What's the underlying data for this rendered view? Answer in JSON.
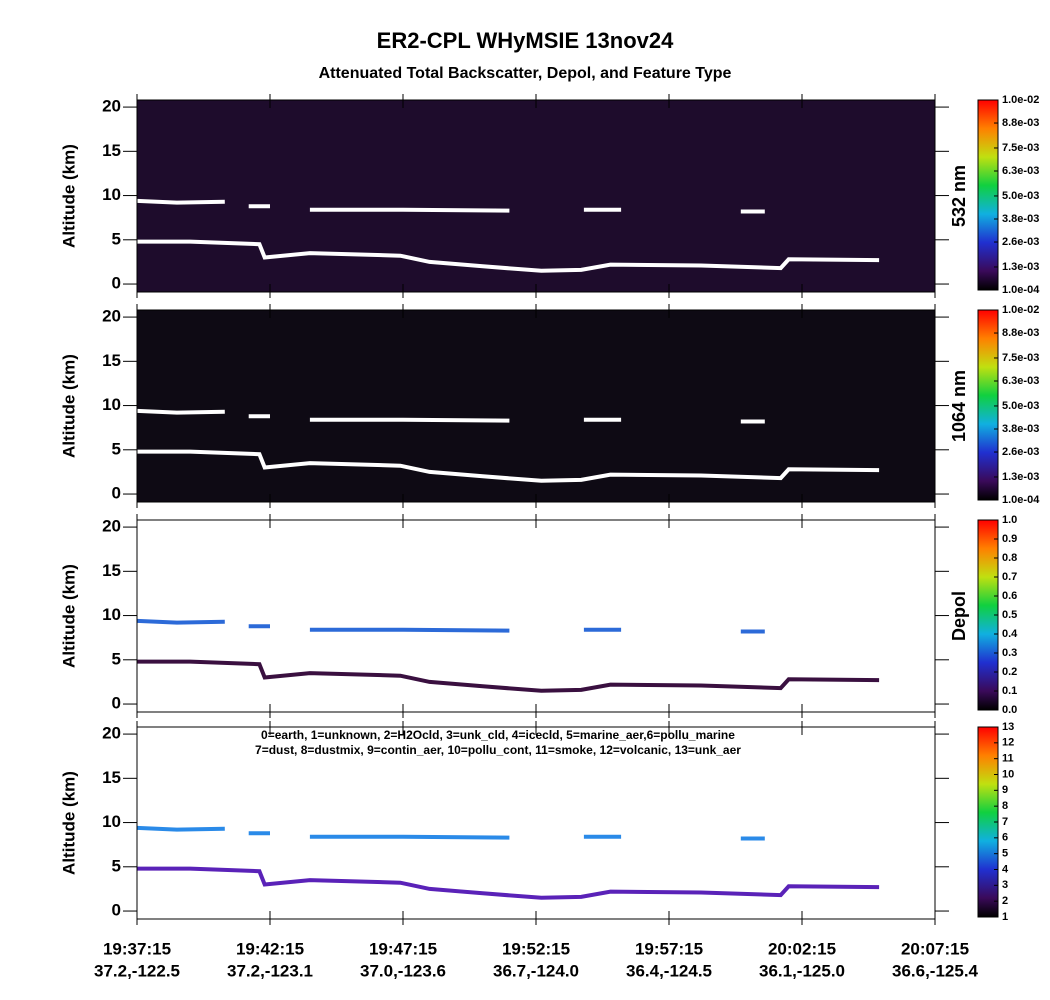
{
  "chart_data": {
    "type": "curtain",
    "title": "ER2-CPL WHyMSIE 13nov24",
    "subtitle": "Attenuated Total Backscatter, Depol, and Feature Type",
    "xlim": [
      0,
      30
    ],
    "xticks": [
      {
        "value": 0,
        "label": "19:37:15"
      },
      {
        "value": 5,
        "label": "19:42:15"
      },
      {
        "value": 10,
        "label": "19:47:15"
      },
      {
        "value": 15,
        "label": "19:52:15"
      },
      {
        "value": 20,
        "label": "19:57:15"
      },
      {
        "value": 25,
        "label": "20:02:15"
      },
      {
        "value": 30,
        "label": "20:07:15"
      }
    ],
    "xtick_positions": [
      "37.2,-122.5",
      "37.2,-123.1",
      "37.0,-123.6",
      "36.7,-124.0",
      "36.4,-124.5",
      "36.1,-125.0",
      "36.6,-125.4"
    ],
    "layers": [
      {
        "x": [
          0,
          1.5,
          3.3,
          3.8,
          4.2,
          5,
          5.8,
          6.5,
          10,
          14,
          15.4,
          16.8,
          18.2,
          20,
          22.7,
          23.6
        ],
        "values": [
          9.4,
          9.2,
          9.3,
          null,
          8.8,
          8.8,
          null,
          8.4,
          8.4,
          8.3,
          null,
          8.4,
          8.4,
          null,
          8.2,
          8.2
        ]
      },
      {
        "x": [
          0,
          2,
          4.6,
          4.8,
          6.5,
          9.9,
          11,
          13,
          15.2,
          16.7,
          17.8,
          21.2,
          24.2,
          24.5,
          27.9
        ],
        "values": [
          4.8,
          4.8,
          4.5,
          3,
          3.5,
          3.2,
          2.5,
          2,
          1.5,
          1.6,
          2.2,
          2.1,
          1.8,
          2.8,
          2.7
        ]
      }
    ],
    "panels": [
      {
        "ylabel": "Altitude (km)",
        "ylim": [
          -0.9,
          20.8
        ],
        "yticks": [
          0,
          5,
          10,
          15,
          20
        ],
        "background": "#1e0c2c",
        "layer_colors": [
          "#ffffff",
          "#ffffff"
        ],
        "colorbar": {
          "label": "532 nm",
          "lim": [
            0.0001,
            0.01
          ],
          "ticks": [
            {
              "value": 0.0001,
              "label": "1.0e-04"
            },
            {
              "value": 0.0013,
              "label": "1.3e-03"
            },
            {
              "value": 0.0026,
              "label": "2.6e-03"
            },
            {
              "value": 0.0038,
              "label": "3.8e-03"
            },
            {
              "value": 0.005,
              "label": "5.0e-03"
            },
            {
              "value": 0.0063,
              "label": "6.3e-03"
            },
            {
              "value": 0.0075,
              "label": "7.5e-03"
            },
            {
              "value": 0.0088,
              "label": "8.8e-03"
            },
            {
              "value": 0.01,
              "label": "1.0e-02"
            }
          ]
        }
      },
      {
        "ylabel": "Altitude (km)",
        "ylim": [
          -0.9,
          20.8
        ],
        "yticks": [
          0,
          5,
          10,
          15,
          20
        ],
        "background": "#0e0a14",
        "layer_colors": [
          "#ffffff",
          "#ffffff"
        ],
        "colorbar": {
          "label": "1064 nm",
          "lim": [
            0.0001,
            0.01
          ],
          "ticks": [
            {
              "value": 0.0001,
              "label": "1.0e-04"
            },
            {
              "value": 0.0013,
              "label": "1.3e-03"
            },
            {
              "value": 0.0026,
              "label": "2.6e-03"
            },
            {
              "value": 0.0038,
              "label": "3.8e-03"
            },
            {
              "value": 0.005,
              "label": "5.0e-03"
            },
            {
              "value": 0.0063,
              "label": "6.3e-03"
            },
            {
              "value": 0.0075,
              "label": "7.5e-03"
            },
            {
              "value": 0.0088,
              "label": "8.8e-03"
            },
            {
              "value": 0.01,
              "label": "1.0e-02"
            }
          ]
        }
      },
      {
        "ylabel": "Altitude (km)",
        "ylim": [
          -0.9,
          20.8
        ],
        "yticks": [
          0,
          5,
          10,
          15,
          20
        ],
        "background": "#ffffff",
        "layer_colors": [
          "#2c6ad8",
          "#3a1040"
        ],
        "colorbar": {
          "label": "Depol",
          "lim": [
            0,
            1
          ],
          "ticks": [
            {
              "value": 0,
              "label": "0.0"
            },
            {
              "value": 0.1,
              "label": "0.1"
            },
            {
              "value": 0.2,
              "label": "0.2"
            },
            {
              "value": 0.3,
              "label": "0.3"
            },
            {
              "value": 0.4,
              "label": "0.4"
            },
            {
              "value": 0.5,
              "label": "0.5"
            },
            {
              "value": 0.6,
              "label": "0.6"
            },
            {
              "value": 0.7,
              "label": "0.7"
            },
            {
              "value": 0.8,
              "label": "0.8"
            },
            {
              "value": 0.9,
              "label": "0.9"
            },
            {
              "value": 1,
              "label": "1.0"
            }
          ]
        }
      },
      {
        "ylabel": "Altitude (km)",
        "ylim": [
          -0.9,
          20.8
        ],
        "yticks": [
          0,
          5,
          10,
          15,
          20
        ],
        "background": "#ffffff",
        "layer_colors": [
          "#2a8ae8",
          "#5a22b8"
        ],
        "legend": [
          "0=earth, 1=unknown, 2=H2Ocld, 3=unk_cld, 4=icecld, 5=marine_aer,6=pollu_marine",
          "7=dust, 8=dustmix, 9=contin_aer, 10=pollu_cont, 11=smoke, 12=volcanic, 13=unk_aer"
        ],
        "colorbar": {
          "lim": [
            1,
            13
          ],
          "ticks": [
            1,
            2,
            3,
            4,
            5,
            6,
            7,
            8,
            9,
            10,
            11,
            12,
            13
          ]
        }
      }
    ]
  }
}
